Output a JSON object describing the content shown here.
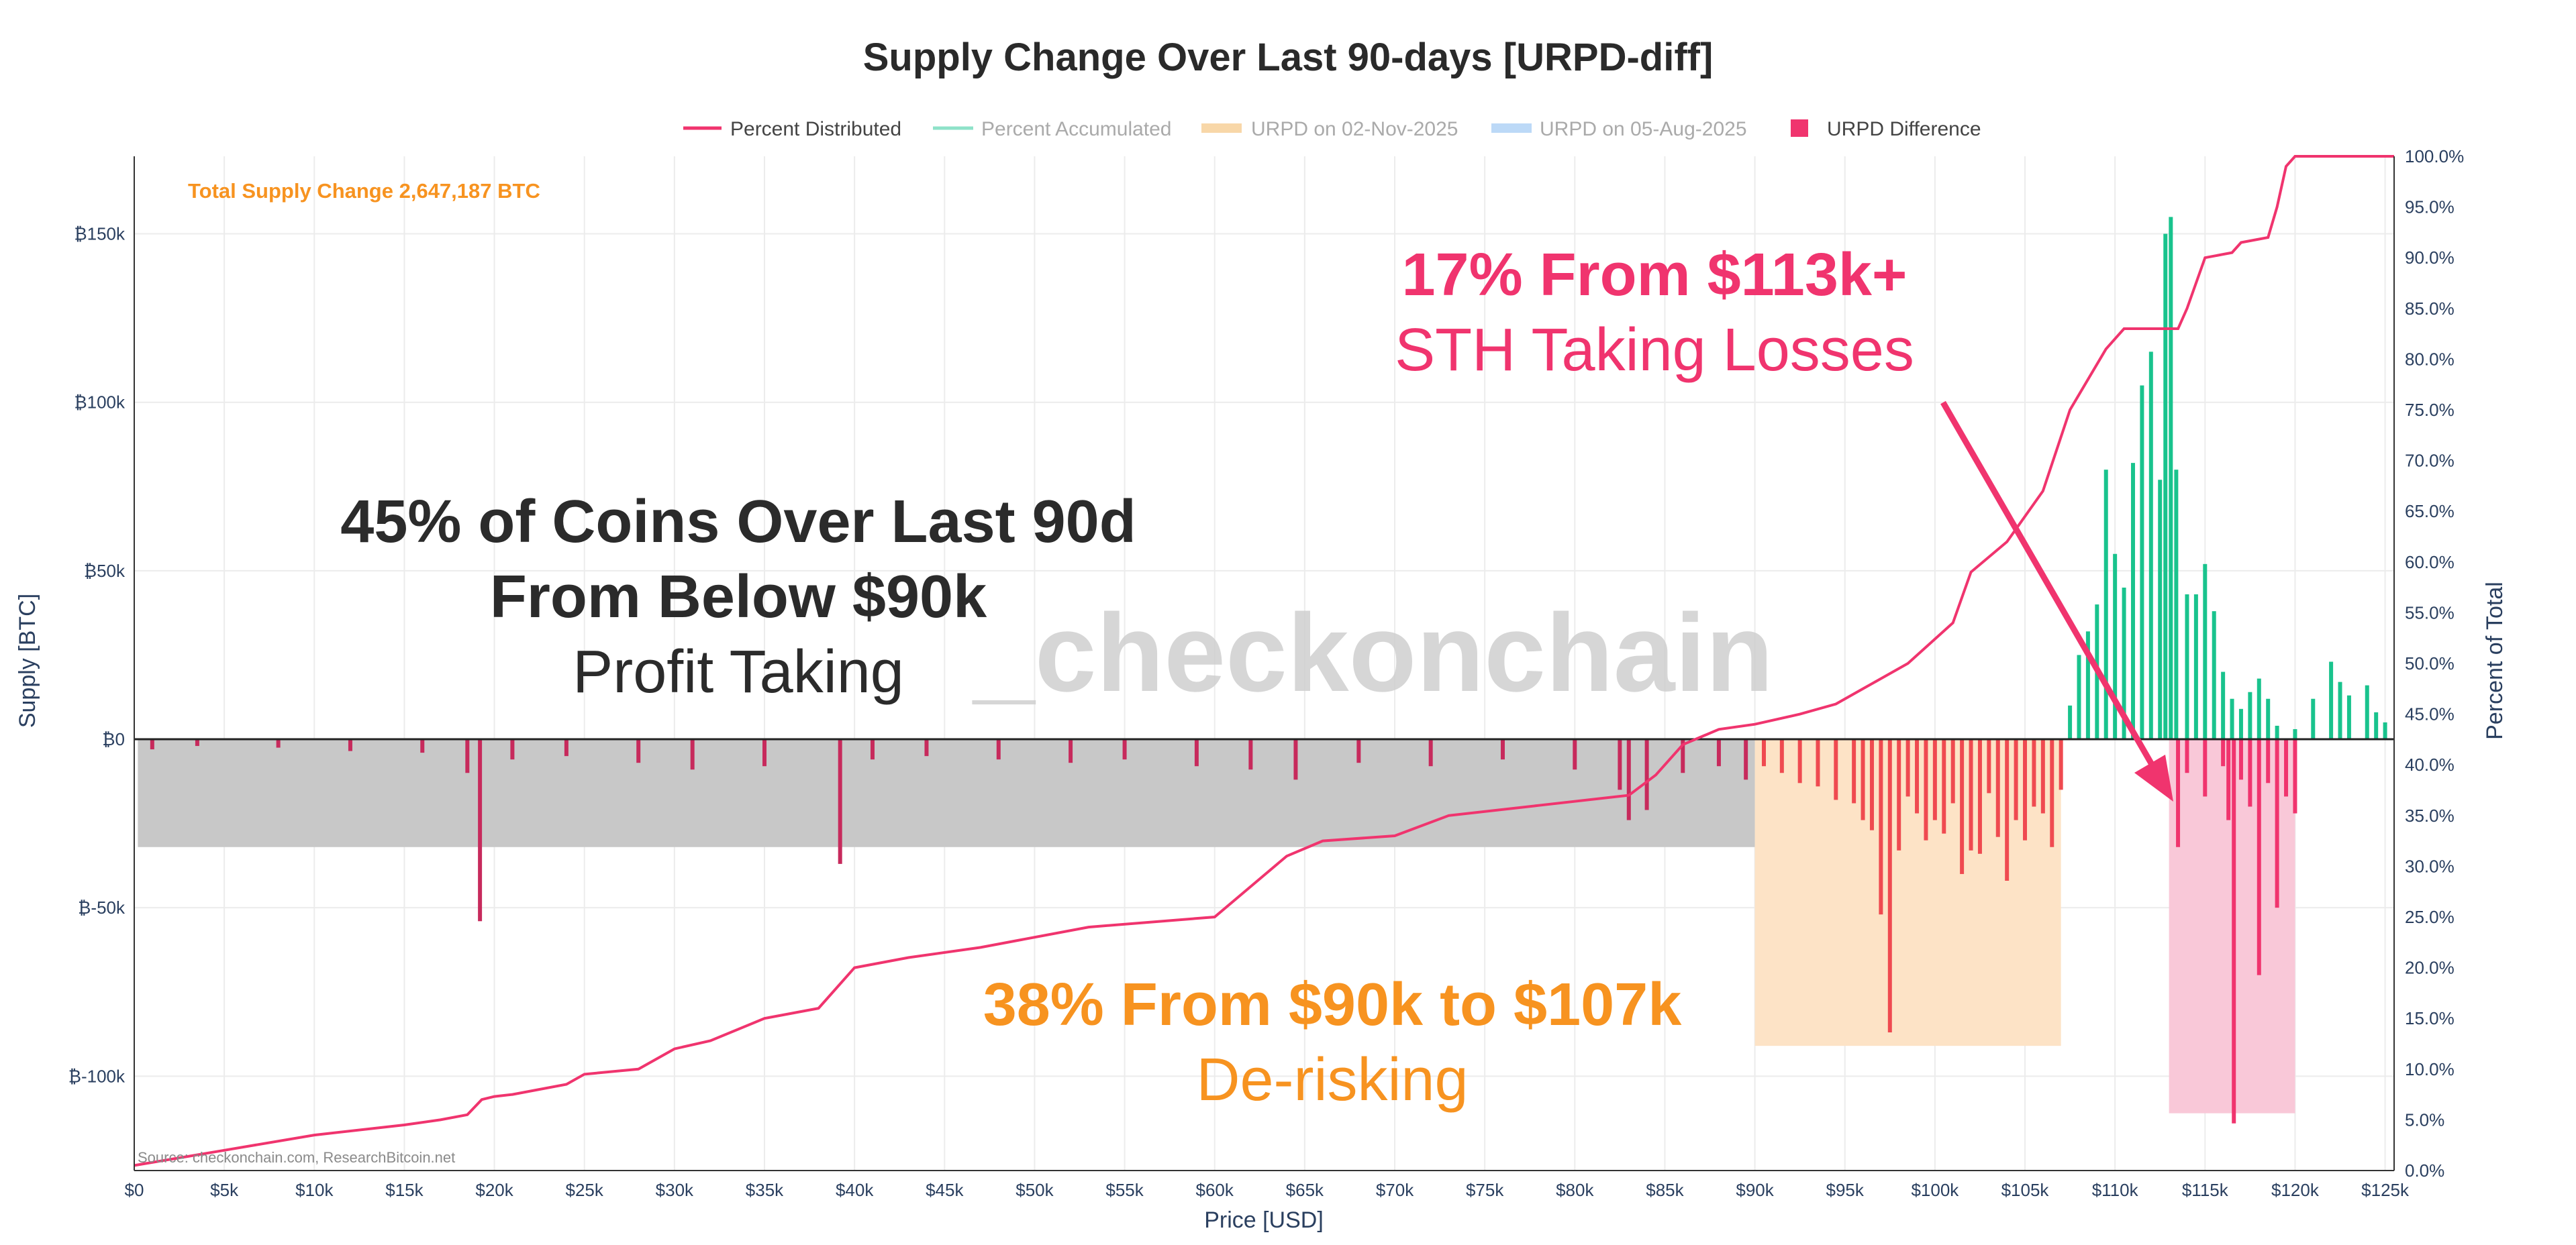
{
  "chart_data": {
    "type": "bar",
    "title": "Supply Change Over Last 90-days [URPD-diff]",
    "xlabel": "Price [USD]",
    "ylabel": "Supply [BTC]",
    "y2label": "Percent of Total",
    "xlim": [
      0,
      125500
    ],
    "ylim": [
      -128000,
      173000
    ],
    "y2lim": [
      0,
      100
    ],
    "x_ticks": [
      "$0",
      "$5k",
      "$10k",
      "$15k",
      "$20k",
      "$25k",
      "$30k",
      "$35k",
      "$40k",
      "$45k",
      "$50k",
      "$55k",
      "$60k",
      "$65k",
      "$70k",
      "$75k",
      "$80k",
      "$85k",
      "$90k",
      "$95k",
      "$100k",
      "$105k",
      "$110k",
      "$115k",
      "$120k",
      "$125k"
    ],
    "x_tick_values": [
      0,
      5000,
      10000,
      15000,
      20000,
      25000,
      30000,
      35000,
      40000,
      45000,
      50000,
      55000,
      60000,
      65000,
      70000,
      75000,
      80000,
      85000,
      90000,
      95000,
      100000,
      105000,
      110000,
      115000,
      120000,
      125000
    ],
    "y_ticks": [
      "₿150k",
      "₿100k",
      "₿50k",
      "₿0",
      "₿-50k",
      "₿-100k"
    ],
    "y_tick_values": [
      150000,
      100000,
      50000,
      0,
      -50000,
      -100000
    ],
    "y2_ticks": [
      "0.0%",
      "5.0%",
      "10.0%",
      "15.0%",
      "20.0%",
      "25.0%",
      "30.0%",
      "35.0%",
      "40.0%",
      "45.0%",
      "50.0%",
      "55.0%",
      "60.0%",
      "65.0%",
      "70.0%",
      "75.0%",
      "80.0%",
      "85.0%",
      "90.0%",
      "95.0%",
      "100.0%"
    ],
    "y2_tick_values": [
      0,
      5,
      10,
      15,
      20,
      25,
      30,
      35,
      40,
      45,
      50,
      55,
      60,
      65,
      70,
      75,
      80,
      85,
      90,
      95,
      100
    ],
    "legend": {
      "position": "top-center",
      "entries": [
        {
          "name": "Percent Distributed",
          "color": "#f0346e",
          "style": "line"
        },
        {
          "name": "Percent Accumulated",
          "color": "#5fd6b2",
          "style": "line"
        },
        {
          "name": "URPD on 02-Nov-2025",
          "color": "#f8d7a8",
          "style": "line"
        },
        {
          "name": "URPD on 05-Aug-2025",
          "color": "#bcd9f7",
          "style": "line"
        },
        {
          "name": "URPD Difference",
          "color": "#f0346e",
          "style": "square"
        }
      ]
    },
    "series": [
      {
        "name": "URPD Difference (distributed, -)",
        "color": "#c72a5c",
        "points": [
          [
            1000,
            -3000
          ],
          [
            3500,
            -2000
          ],
          [
            8000,
            -2500
          ],
          [
            12000,
            -3500
          ],
          [
            16000,
            -4000
          ],
          [
            18500,
            -10000
          ],
          [
            19200,
            -54000
          ],
          [
            21000,
            -6000
          ],
          [
            24000,
            -5000
          ],
          [
            28000,
            -7000
          ],
          [
            31000,
            -9000
          ],
          [
            35000,
            -8000
          ],
          [
            39200,
            -37000
          ],
          [
            41000,
            -6000
          ],
          [
            44000,
            -5000
          ],
          [
            48000,
            -6000
          ],
          [
            52000,
            -7000
          ],
          [
            55000,
            -6000
          ],
          [
            59000,
            -8000
          ],
          [
            62000,
            -9000
          ],
          [
            64500,
            -12000
          ],
          [
            68000,
            -7000
          ],
          [
            72000,
            -8000
          ],
          [
            76000,
            -6000
          ],
          [
            80000,
            -9000
          ],
          [
            82500,
            -15000
          ],
          [
            83000,
            -24000
          ],
          [
            84000,
            -21000
          ],
          [
            86000,
            -10000
          ],
          [
            88000,
            -8000
          ],
          [
            89500,
            -12000
          ]
        ]
      },
      {
        "name": "URPD Difference (distributed $90k-$107k, -)",
        "color": "#ef4a50",
        "points": [
          [
            90500,
            -8000
          ],
          [
            91500,
            -10000
          ],
          [
            92500,
            -13000
          ],
          [
            93500,
            -14000
          ],
          [
            94500,
            -18000
          ],
          [
            95500,
            -19000
          ],
          [
            96000,
            -24000
          ],
          [
            96500,
            -27000
          ],
          [
            97000,
            -52000
          ],
          [
            97500,
            -87000
          ],
          [
            98000,
            -33000
          ],
          [
            98500,
            -17000
          ],
          [
            99000,
            -22000
          ],
          [
            99500,
            -30000
          ],
          [
            100000,
            -24000
          ],
          [
            100500,
            -28000
          ],
          [
            101000,
            -19000
          ],
          [
            101500,
            -40000
          ],
          [
            102000,
            -33000
          ],
          [
            102500,
            -34000
          ],
          [
            103000,
            -16000
          ],
          [
            103500,
            -29000
          ],
          [
            104000,
            -42000
          ],
          [
            104500,
            -24000
          ],
          [
            105000,
            -30000
          ],
          [
            105500,
            -20000
          ],
          [
            106000,
            -22000
          ],
          [
            106500,
            -32000
          ],
          [
            107000,
            -15000
          ]
        ]
      },
      {
        "name": "URPD Difference (distributed $113k+, -)",
        "color": "#f0346e",
        "points": [
          [
            113500,
            -32000
          ],
          [
            114000,
            -10000
          ],
          [
            115000,
            -17000
          ],
          [
            116000,
            -8000
          ],
          [
            116300,
            -24000
          ],
          [
            116600,
            -114000
          ],
          [
            117000,
            -12000
          ],
          [
            117500,
            -20000
          ],
          [
            118000,
            -70000
          ],
          [
            118500,
            -13000
          ],
          [
            119000,
            -50000
          ],
          [
            119500,
            -17000
          ],
          [
            120000,
            -22000
          ]
        ]
      },
      {
        "name": "URPD Difference (accumulated, +)",
        "color": "#19c38d",
        "points": [
          [
            107500,
            10000
          ],
          [
            108000,
            25000
          ],
          [
            108500,
            32000
          ],
          [
            109000,
            40000
          ],
          [
            109500,
            80000
          ],
          [
            110000,
            55000
          ],
          [
            110500,
            45000
          ],
          [
            111000,
            82000
          ],
          [
            111500,
            105000
          ],
          [
            112000,
            115000
          ],
          [
            112500,
            77000
          ],
          [
            112800,
            150000
          ],
          [
            113100,
            155000
          ],
          [
            113400,
            80000
          ],
          [
            114000,
            43000
          ],
          [
            114500,
            43000
          ],
          [
            115000,
            52000
          ],
          [
            115500,
            38000
          ],
          [
            116000,
            20000
          ],
          [
            116500,
            12000
          ],
          [
            117000,
            9000
          ],
          [
            117500,
            14000
          ],
          [
            118000,
            18000
          ],
          [
            118500,
            12000
          ],
          [
            119000,
            4000
          ],
          [
            120000,
            3000
          ],
          [
            121000,
            12000
          ],
          [
            122000,
            23000
          ],
          [
            122500,
            17000
          ],
          [
            123000,
            13000
          ],
          [
            124000,
            16000
          ],
          [
            124500,
            8000
          ],
          [
            125000,
            5000
          ]
        ]
      },
      {
        "name": "Percent Distributed",
        "color": "#f0346e",
        "points": [
          [
            0,
            0.5
          ],
          [
            5000,
            2
          ],
          [
            10000,
            3.5
          ],
          [
            15000,
            4.5
          ],
          [
            17000,
            5
          ],
          [
            18500,
            5.5
          ],
          [
            19300,
            7
          ],
          [
            20000,
            7.3
          ],
          [
            21000,
            7.5
          ],
          [
            24000,
            8.5
          ],
          [
            25000,
            9.5
          ],
          [
            28000,
            10
          ],
          [
            30000,
            12
          ],
          [
            32000,
            12.8
          ],
          [
            35000,
            15
          ],
          [
            38000,
            16
          ],
          [
            40000,
            20
          ],
          [
            43000,
            21
          ],
          [
            47000,
            22
          ],
          [
            53000,
            24
          ],
          [
            60000,
            25
          ],
          [
            62000,
            28
          ],
          [
            64000,
            31
          ],
          [
            66000,
            32.5
          ],
          [
            70000,
            33
          ],
          [
            73000,
            35
          ],
          [
            78000,
            36
          ],
          [
            83000,
            37
          ],
          [
            84500,
            39
          ],
          [
            86000,
            42
          ],
          [
            88000,
            43.5
          ],
          [
            90000,
            44
          ],
          [
            92500,
            45
          ],
          [
            94500,
            46
          ],
          [
            96000,
            47.5
          ],
          [
            98500,
            50
          ],
          [
            101000,
            54
          ],
          [
            102000,
            59
          ],
          [
            104000,
            62
          ],
          [
            106000,
            67
          ],
          [
            107500,
            75
          ],
          [
            109500,
            81
          ],
          [
            110500,
            83
          ],
          [
            112000,
            83
          ],
          [
            113500,
            83
          ],
          [
            114000,
            85
          ],
          [
            115000,
            90
          ],
          [
            116500,
            90.5
          ],
          [
            117000,
            91.5
          ],
          [
            118500,
            92
          ],
          [
            119000,
            95
          ],
          [
            119500,
            99
          ],
          [
            120000,
            100
          ],
          [
            125500,
            100
          ]
        ]
      }
    ],
    "shaded_regions": [
      {
        "label": "below $90k",
        "x": [
          200,
          90000
        ],
        "y": [
          0,
          -32000
        ],
        "color": "#c8c8c8"
      },
      {
        "label": "$90k-$107k",
        "x": [
          90000,
          107000
        ],
        "y": [
          0,
          -91000
        ],
        "color": "#fde3c6"
      },
      {
        "label": "$113k+",
        "x": [
          113000,
          120000
        ],
        "y": [
          0,
          -111000
        ],
        "color": "#f9c8d8"
      }
    ],
    "annotations": {
      "total_supply": "Total Supply Change 2,647,187 BTC",
      "profit_taking_line1": "45% of Coins Over Last 90d",
      "profit_taking_line2": "From Below $90k",
      "profit_taking_line3": "Profit Taking",
      "derisking_line1": "38% From $90k to $107k",
      "derisking_line2": "De-risking",
      "sth_line1": "17% From $113k+",
      "sth_line2": "STH Taking Losses",
      "watermark": "_checkonchain",
      "source": "Source: checkonchain.com, ResearchBitcoin.net"
    },
    "colors": {
      "distributed": "#f0346e",
      "orange": "#f79320",
      "dark_text": "#2b2b2b"
    }
  }
}
